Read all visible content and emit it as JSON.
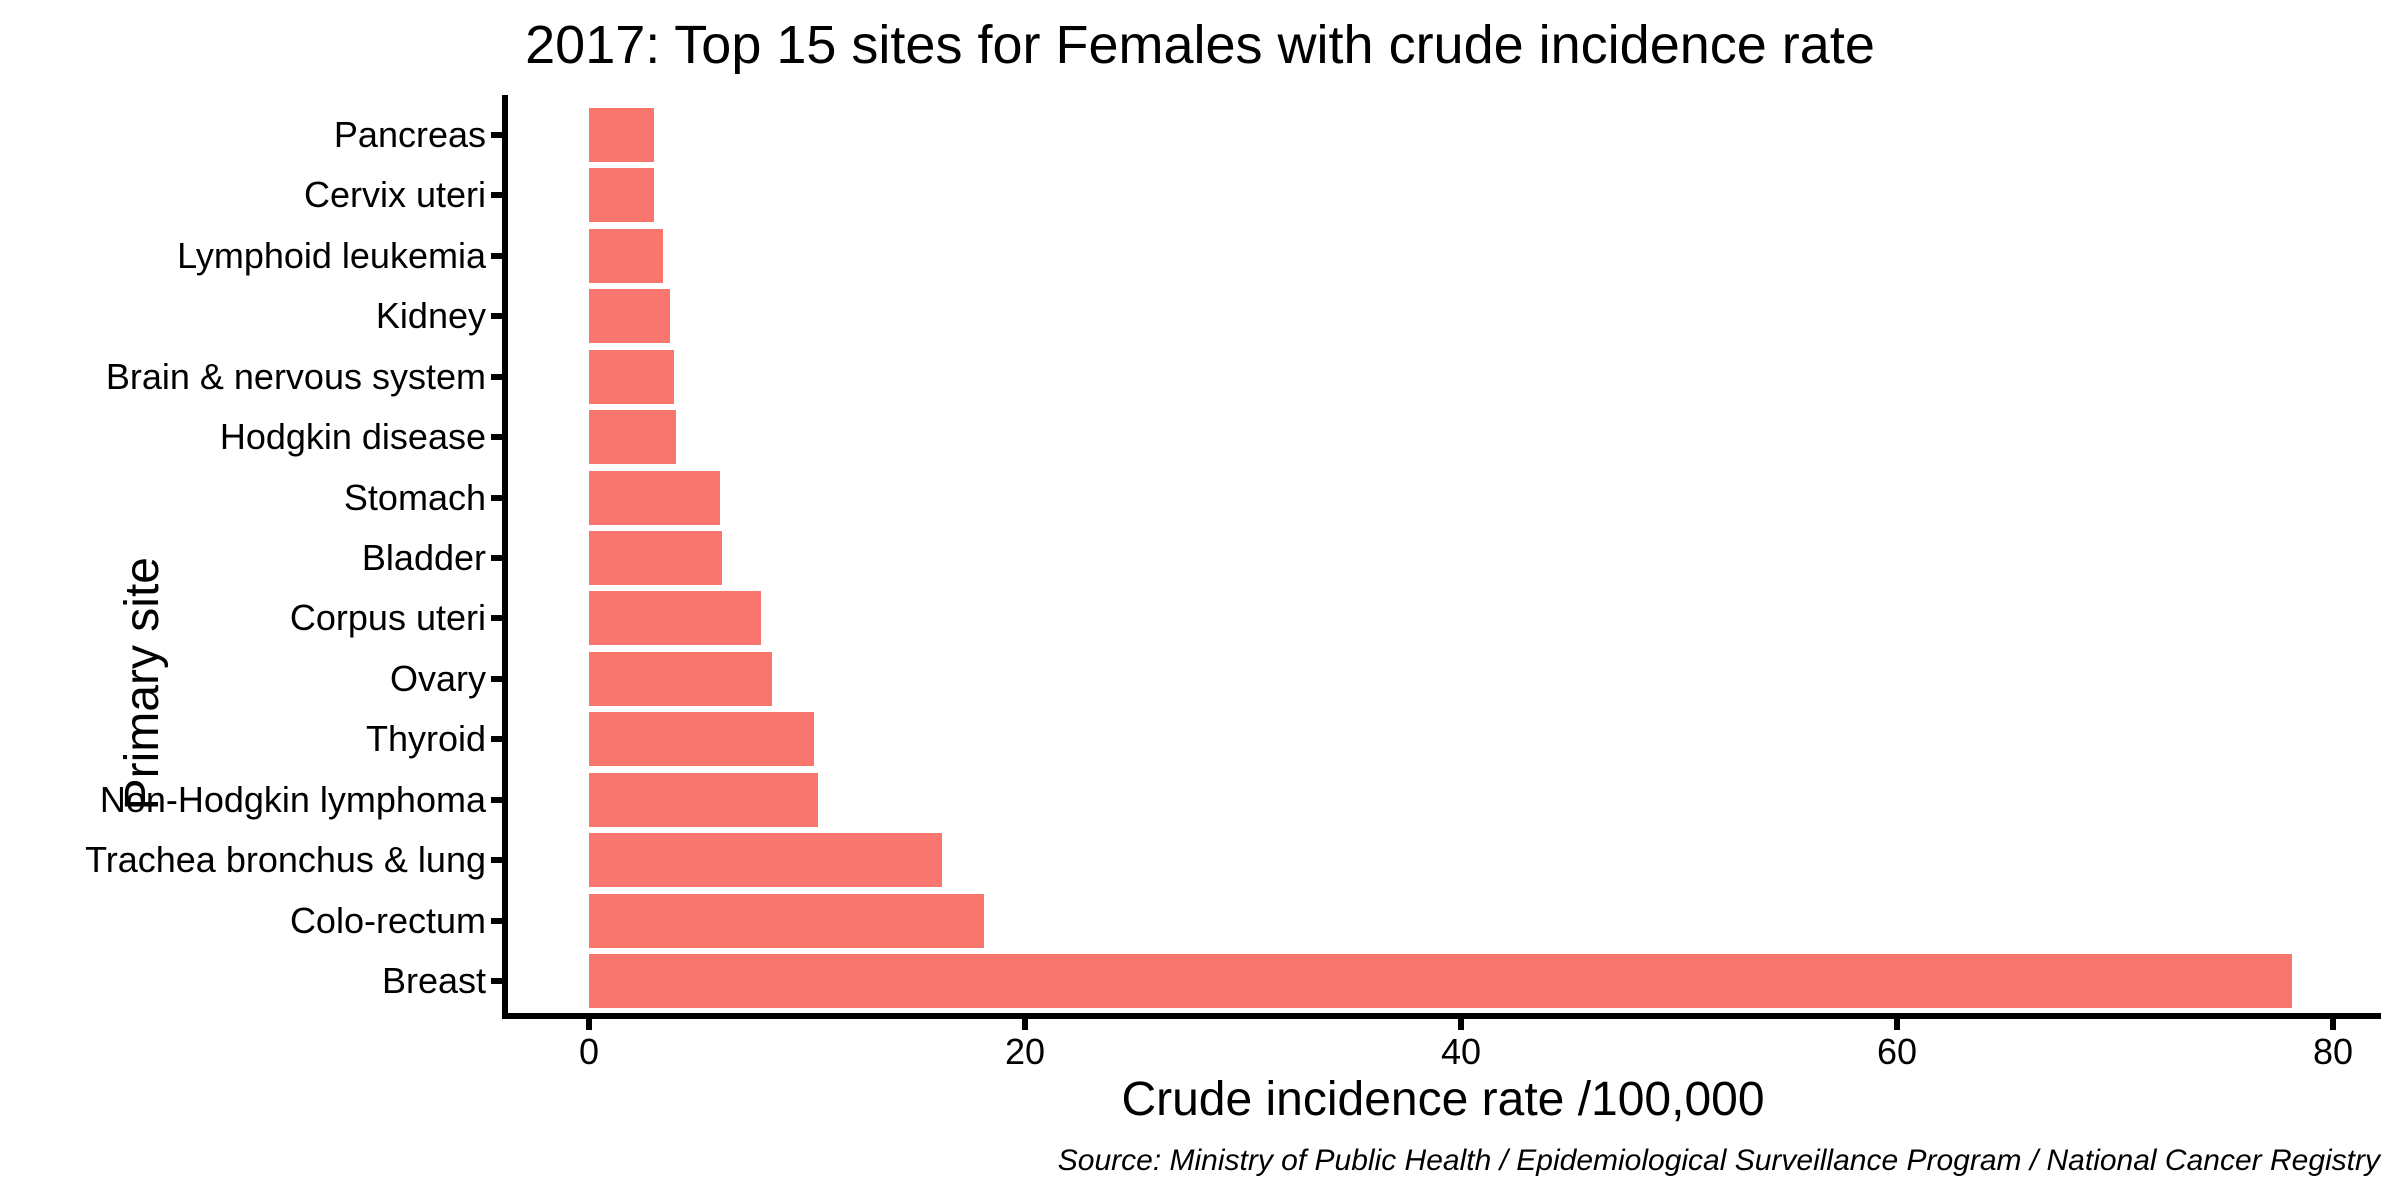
{
  "chart_data": {
    "type": "bar",
    "orientation": "horizontal",
    "title": "2017: Top 15 sites for Females with crude incidence rate",
    "xlabel": "Crude incidence rate /100,000",
    "ylabel": "Primary site",
    "caption": "Source: Ministry of Public Health / Epidemiological Surveillance Program / National Cancer Registry",
    "categories": [
      "Pancreas",
      "Cervix uteri",
      "Lymphoid leukemia",
      "Kidney",
      "Brain & nervous system",
      "Hodgkin disease",
      "Stomach",
      "Bladder",
      "Corpus uteri",
      "Ovary",
      "Thyroid",
      "Non-Hodgkin lymphoma",
      "Trachea bronchus & lung",
      "Colo-rectum",
      "Breast"
    ],
    "values": [
      3.0,
      3.0,
      3.4,
      3.7,
      3.9,
      4.0,
      6.0,
      6.1,
      7.9,
      8.4,
      10.3,
      10.5,
      16.2,
      18.1,
      78.1
    ],
    "x_ticks": [
      0,
      20,
      40,
      60,
      80
    ],
    "xlim": [
      0,
      82
    ],
    "bar_color": "#F8766D",
    "axis_color": "#000000",
    "grid": false,
    "legend": false
  }
}
